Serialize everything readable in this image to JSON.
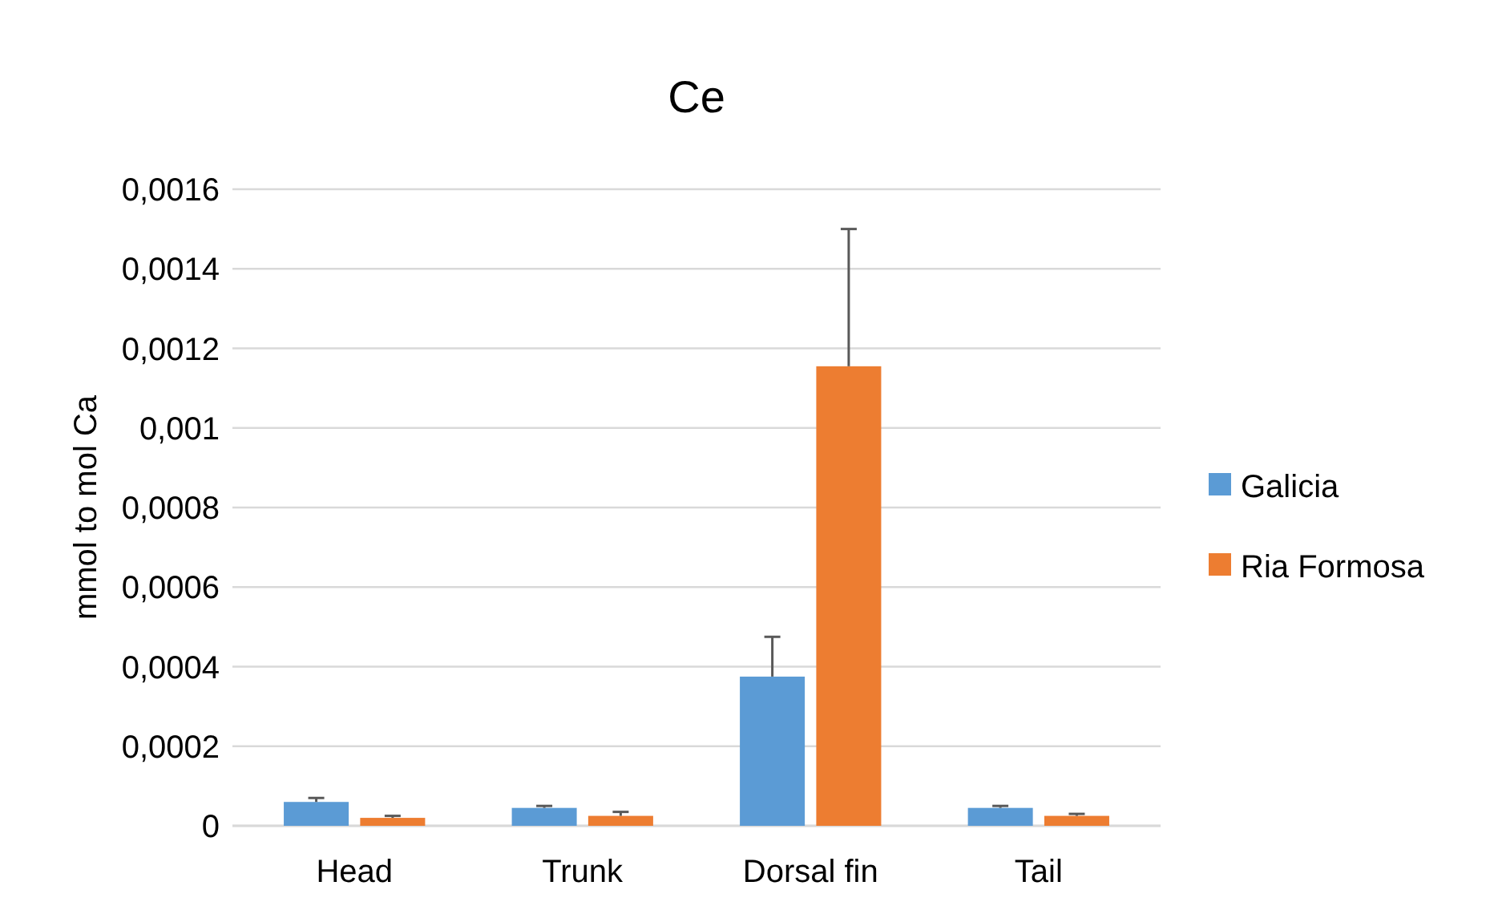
{
  "chart_data": {
    "type": "bar",
    "title": "Ce",
    "ylabel": "mmol to mol Ca",
    "categories": [
      "Head",
      "Trunk",
      "Dorsal fin",
      "Tail"
    ],
    "series": [
      {
        "name": "Galicia",
        "color": "#5b9bd5",
        "values": [
          6e-05,
          4.5e-05,
          0.000375,
          4.5e-05
        ],
        "errors": [
          [
            6e-05,
            7e-05
          ],
          [
            4.5e-05,
            5e-05
          ],
          [
            0.000375,
            0.000475
          ],
          [
            4.5e-05,
            5e-05
          ]
        ]
      },
      {
        "name": "Ria Formosa",
        "color": "#ed7d31",
        "values": [
          2e-05,
          2.5e-05,
          0.001155,
          2.5e-05
        ],
        "errors": [
          [
            2e-05,
            2.5e-05
          ],
          [
            2.5e-05,
            3.5e-05
          ],
          [
            0.001155,
            0.0015
          ],
          [
            2.5e-05,
            3e-05
          ]
        ]
      }
    ],
    "ylim": [
      0,
      0.0016
    ],
    "yticks": [
      {
        "value": 0,
        "label": "0"
      },
      {
        "value": 0.0002,
        "label": "0,0002"
      },
      {
        "value": 0.0004,
        "label": "0,0004"
      },
      {
        "value": 0.0006,
        "label": "0,0006"
      },
      {
        "value": 0.0008,
        "label": "0,0008"
      },
      {
        "value": 0.001,
        "label": "0,001"
      },
      {
        "value": 0.0012,
        "label": "0,0012"
      },
      {
        "value": 0.0014,
        "label": "0,0014"
      },
      {
        "value": 0.0016,
        "label": "0,0016"
      }
    ],
    "grid": "y",
    "legend": "right"
  }
}
